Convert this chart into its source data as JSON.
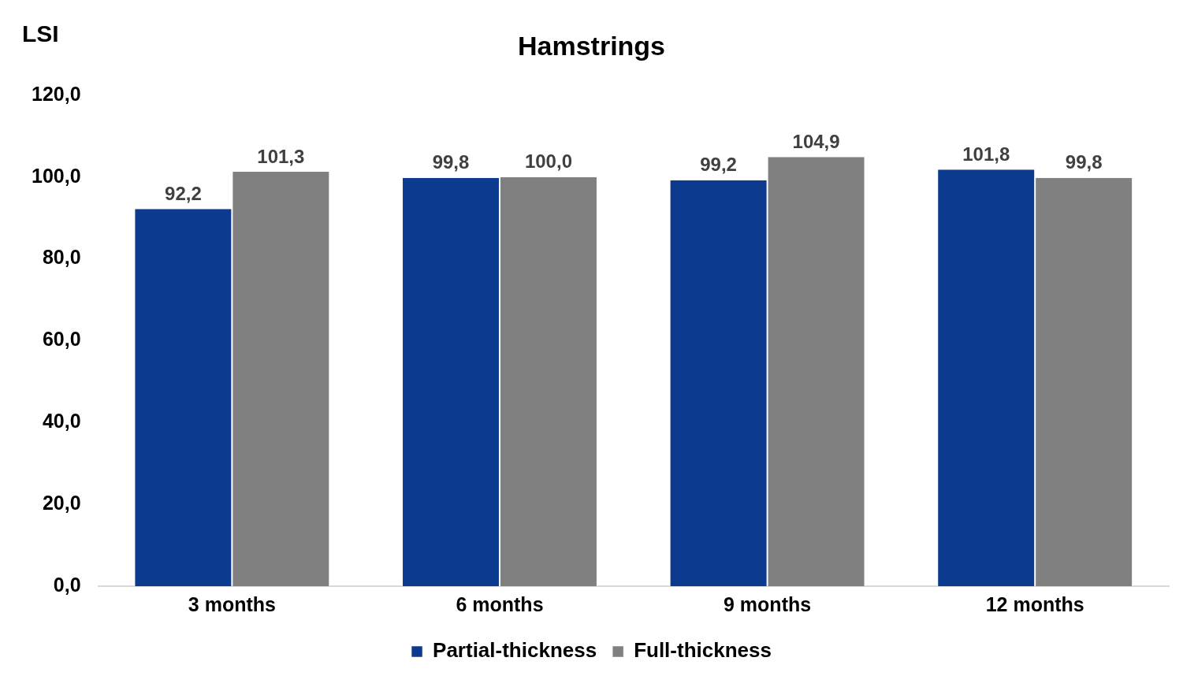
{
  "chart_data": {
    "type": "bar",
    "title": "Hamstrings",
    "ylabel": "LSI",
    "categories": [
      "3 months",
      "6 months",
      "9 months",
      "12 months"
    ],
    "series": [
      {
        "name": "Partial-thickness",
        "color": "#0b3a8f",
        "values": [
          92.2,
          99.8,
          99.2,
          101.8
        ],
        "value_labels": [
          "92,2",
          "99,8",
          "99,2",
          "101,8"
        ]
      },
      {
        "name": "Full-thickness",
        "color": "#808080",
        "values": [
          101.3,
          100.0,
          104.9,
          99.8
        ],
        "value_labels": [
          "101,3",
          "100,0",
          "104,9",
          "99,8"
        ]
      }
    ],
    "ylim": [
      0,
      120
    ],
    "yticks": [
      {
        "value": 0,
        "label": "0,0"
      },
      {
        "value": 20,
        "label": "20,0"
      },
      {
        "value": 40,
        "label": "40,0"
      },
      {
        "value": 60,
        "label": "60,0"
      },
      {
        "value": 80,
        "label": "80,0"
      },
      {
        "value": 100,
        "label": "100,0"
      },
      {
        "value": 120,
        "label": "120,0"
      }
    ],
    "grid": false,
    "legend": "bottom"
  }
}
